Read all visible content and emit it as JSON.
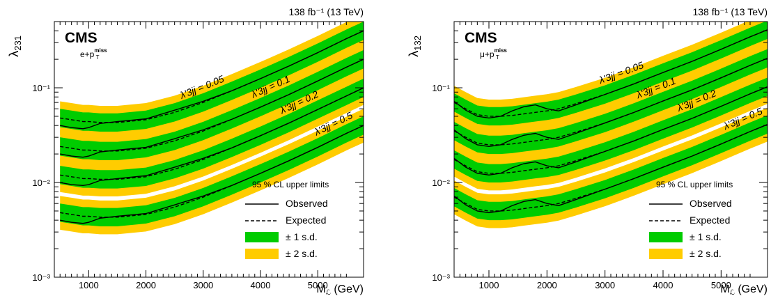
{
  "colors": {
    "band2": "#ffcc00",
    "band1": "#00cc00",
    "line": "#000000",
    "bg": "#ffffff"
  },
  "chart_data": [
    {
      "type": "line",
      "lumi": "138 fb⁻¹ (13 TeV)",
      "cms_label": "CMS",
      "channel_label": "e+p",
      "channel_sub": "T",
      "channel_sup": "miss",
      "xlabel": "M",
      "xlabel_sub": "ℒ",
      "xlabel_unit": "(GeV)",
      "ylabel": "λ",
      "ylabel_sub": "231",
      "xlim": [
        400,
        5800
      ],
      "ylim": [
        0.001,
        0.5
      ],
      "yscale": "log",
      "xticks": [
        1000,
        2000,
        3000,
        4000,
        5000
      ],
      "xtick_labels": [
        "1000",
        "2000",
        "3000",
        "4000",
        "5000"
      ],
      "yticks": [
        0.001,
        0.01,
        0.1
      ],
      "ytick_labels": [
        "10⁻³",
        "10⁻²",
        "10⁻¹"
      ],
      "legend": {
        "header": "95 % CL upper limits",
        "entries": [
          {
            "label": "Observed",
            "style": "solid"
          },
          {
            "label": "Expected",
            "style": "dashed"
          },
          {
            "label": "± 1 s.d.",
            "style": "band1"
          },
          {
            "label": "± 2 s.d.",
            "style": "band2"
          }
        ]
      },
      "series": [
        {
          "name": "λ'3jj = 0.05",
          "label_x": 3000,
          "x": [
            500,
            700,
            900,
            1000,
            1200,
            1500,
            2000,
            2500,
            3000,
            3500,
            4000,
            4500,
            5000,
            5500,
            5800
          ],
          "expected": [
            0.048,
            0.046,
            0.044,
            0.044,
            0.043,
            0.043,
            0.046,
            0.055,
            0.07,
            0.093,
            0.125,
            0.17,
            0.235,
            0.33,
            0.4
          ],
          "observed": [
            0.04,
            0.038,
            0.037,
            0.038,
            0.042,
            0.044,
            0.047,
            0.058,
            0.072,
            0.093,
            0.125,
            0.17,
            0.235,
            0.33,
            0.4
          ]
        },
        {
          "name": "λ'3jj = 0.1",
          "label_x": 4200,
          "x": [
            500,
            700,
            900,
            1000,
            1200,
            1500,
            2000,
            2500,
            3000,
            3500,
            4000,
            4500,
            5000,
            5500,
            5800
          ],
          "expected": [
            0.024,
            0.023,
            0.022,
            0.022,
            0.0215,
            0.0215,
            0.023,
            0.0275,
            0.035,
            0.0465,
            0.0625,
            0.085,
            0.118,
            0.165,
            0.2
          ],
          "observed": [
            0.02,
            0.019,
            0.0185,
            0.019,
            0.021,
            0.022,
            0.0235,
            0.029,
            0.036,
            0.0465,
            0.0625,
            0.085,
            0.118,
            0.165,
            0.2
          ]
        },
        {
          "name": "λ'3jj = 0.2",
          "label_x": 4700,
          "x": [
            500,
            700,
            900,
            1000,
            1200,
            1500,
            2000,
            2500,
            3000,
            3500,
            4000,
            4500,
            5000,
            5500,
            5800
          ],
          "expected": [
            0.012,
            0.0115,
            0.011,
            0.011,
            0.0108,
            0.0108,
            0.0115,
            0.0138,
            0.0175,
            0.0232,
            0.0312,
            0.0425,
            0.059,
            0.082,
            0.1
          ],
          "observed": [
            0.01,
            0.0095,
            0.0093,
            0.0095,
            0.0105,
            0.011,
            0.0118,
            0.0145,
            0.018,
            0.0232,
            0.0312,
            0.0425,
            0.059,
            0.082,
            0.1
          ]
        },
        {
          "name": "λ'3jj = 0.5",
          "label_x": 5300,
          "x": [
            500,
            700,
            900,
            1000,
            1200,
            1500,
            2000,
            2500,
            3000,
            3500,
            4000,
            4500,
            5000,
            5500,
            5800
          ],
          "expected": [
            0.0048,
            0.0046,
            0.0044,
            0.0044,
            0.0043,
            0.0043,
            0.0046,
            0.0055,
            0.007,
            0.0093,
            0.0125,
            0.017,
            0.0235,
            0.033,
            0.04
          ],
          "observed": [
            0.004,
            0.0038,
            0.0037,
            0.0038,
            0.0042,
            0.0044,
            0.0047,
            0.0058,
            0.0072,
            0.0093,
            0.0125,
            0.017,
            0.0235,
            0.033,
            0.04
          ]
        }
      ]
    },
    {
      "type": "line",
      "lumi": "138 fb⁻¹ (13 TeV)",
      "cms_label": "CMS",
      "channel_label": "μ+p",
      "channel_sub": "T",
      "channel_sup": "miss",
      "xlabel": "M",
      "xlabel_sub": "ℒ",
      "xlabel_unit": "(GeV)",
      "ylabel": "λ",
      "ylabel_sub": "132",
      "xlim": [
        400,
        5800
      ],
      "ylim": [
        0.001,
        0.5
      ],
      "yscale": "log",
      "xticks": [
        1000,
        2000,
        3000,
        4000,
        5000
      ],
      "xtick_labels": [
        "1000",
        "2000",
        "3000",
        "4000",
        "5000"
      ],
      "yticks": [
        0.001,
        0.01,
        0.1
      ],
      "ytick_labels": [
        "10⁻³",
        "10⁻²",
        "10⁻¹"
      ],
      "legend": {
        "header": "95 % CL upper limits",
        "entries": [
          {
            "label": "Observed",
            "style": "solid"
          },
          {
            "label": "Expected",
            "style": "dashed"
          },
          {
            "label": "± 1 s.d.",
            "style": "band1"
          },
          {
            "label": "± 2 s.d.",
            "style": "band2"
          }
        ]
      },
      "series": [
        {
          "name": "λ'3jj = 0.05",
          "label_x": 3300,
          "x": [
            400,
            600,
            800,
            1000,
            1200,
            1400,
            1600,
            1800,
            2000,
            2200,
            2500,
            3000,
            3500,
            4000,
            4500,
            5000,
            5500,
            5800
          ],
          "expected": [
            0.07,
            0.06,
            0.052,
            0.05,
            0.05,
            0.051,
            0.053,
            0.055,
            0.057,
            0.06,
            0.068,
            0.085,
            0.11,
            0.145,
            0.19,
            0.255,
            0.345,
            0.41
          ],
          "observed": [
            0.072,
            0.058,
            0.05,
            0.048,
            0.05,
            0.057,
            0.063,
            0.066,
            0.06,
            0.057,
            0.066,
            0.085,
            0.11,
            0.145,
            0.19,
            0.255,
            0.345,
            0.41
          ]
        },
        {
          "name": "λ'3jj = 0.1",
          "label_x": 3900,
          "x": [
            400,
            600,
            800,
            1000,
            1200,
            1400,
            1600,
            1800,
            2000,
            2200,
            2500,
            3000,
            3500,
            4000,
            4500,
            5000,
            5500,
            5800
          ],
          "expected": [
            0.035,
            0.03,
            0.026,
            0.025,
            0.025,
            0.0255,
            0.0265,
            0.0275,
            0.0285,
            0.03,
            0.034,
            0.0425,
            0.055,
            0.0725,
            0.095,
            0.1275,
            0.1725,
            0.205
          ],
          "observed": [
            0.036,
            0.029,
            0.025,
            0.024,
            0.025,
            0.0285,
            0.0315,
            0.033,
            0.03,
            0.0285,
            0.033,
            0.0425,
            0.055,
            0.0725,
            0.095,
            0.1275,
            0.1725,
            0.205
          ]
        },
        {
          "name": "λ'3jj = 0.2",
          "label_x": 4600,
          "x": [
            400,
            600,
            800,
            1000,
            1200,
            1400,
            1600,
            1800,
            2000,
            2200,
            2500,
            3000,
            3500,
            4000,
            4500,
            5000,
            5500,
            5800
          ],
          "expected": [
            0.0175,
            0.015,
            0.013,
            0.0125,
            0.0125,
            0.0128,
            0.0133,
            0.0138,
            0.0143,
            0.015,
            0.017,
            0.0213,
            0.0275,
            0.0363,
            0.0475,
            0.0638,
            0.0863,
            0.1025
          ],
          "observed": [
            0.018,
            0.0145,
            0.0125,
            0.012,
            0.0125,
            0.0143,
            0.0158,
            0.0165,
            0.015,
            0.0143,
            0.0165,
            0.0213,
            0.0275,
            0.0363,
            0.0475,
            0.0638,
            0.0863,
            0.1025
          ]
        },
        {
          "name": "λ'3jj = 0.5",
          "label_x": 5400,
          "x": [
            400,
            600,
            800,
            1000,
            1200,
            1400,
            1600,
            1800,
            2000,
            2200,
            2500,
            3000,
            3500,
            4000,
            4500,
            5000,
            5500,
            5800
          ],
          "expected": [
            0.007,
            0.006,
            0.0052,
            0.005,
            0.005,
            0.0051,
            0.0053,
            0.0055,
            0.0057,
            0.006,
            0.0068,
            0.0085,
            0.011,
            0.0145,
            0.019,
            0.0255,
            0.0345,
            0.041
          ],
          "observed": [
            0.0072,
            0.0058,
            0.005,
            0.0048,
            0.005,
            0.0057,
            0.0063,
            0.0066,
            0.006,
            0.0057,
            0.0066,
            0.0085,
            0.011,
            0.0145,
            0.019,
            0.0255,
            0.0345,
            0.041
          ]
        }
      ]
    }
  ]
}
